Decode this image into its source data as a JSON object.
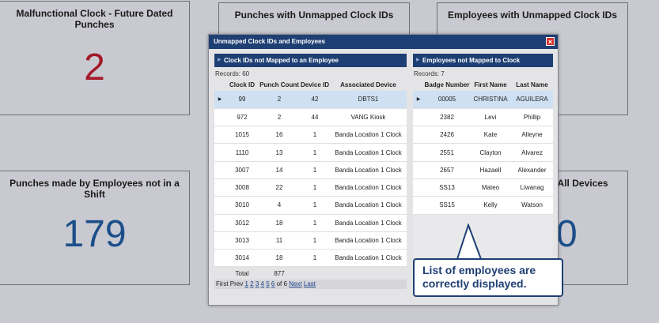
{
  "tiles": [
    {
      "title": "Malfunctional Clock - Future Dated Punches",
      "value": "2"
    },
    {
      "title": "Punches with Unmapped Clock IDs",
      "value": ""
    },
    {
      "title": "Employees with Unmapped Clock IDs",
      "value": ""
    },
    {
      "title": "Punches made by Employees not in a Shift",
      "value": "179"
    },
    {
      "title": "r All Devices",
      "value": "0"
    }
  ],
  "modal": {
    "title": "Unmapped Clock IDs and Employees",
    "close": "×",
    "left_panel": {
      "title": "Clock IDs not Mapped to an Employee",
      "records": "Records:  60",
      "columns": [
        "Clock ID",
        "Punch Count",
        "Device ID",
        "Associated Device"
      ],
      "rows": [
        [
          "99",
          "2",
          "42",
          "DBTS1"
        ],
        [
          "972",
          "2",
          "44",
          "VANG Kiosk"
        ],
        [
          "1015",
          "16",
          "1",
          "Banda Location 1 Clock"
        ],
        [
          "1110",
          "13",
          "1",
          "Banda Location 1 Clock"
        ],
        [
          "3007",
          "14",
          "1",
          "Banda Location 1 Clock"
        ],
        [
          "3008",
          "22",
          "1",
          "Banda Location 1 Clock"
        ],
        [
          "3010",
          "4",
          "1",
          "Banda Location 1 Clock"
        ],
        [
          "3012",
          "18",
          "1",
          "Banda Location 1 Clock"
        ],
        [
          "3013",
          "11",
          "1",
          "Banda Location 1 Clock"
        ],
        [
          "3014",
          "18",
          "1",
          "Banda Location 1 Clock"
        ]
      ],
      "total_label": "Total",
      "total_value": "877",
      "pager": {
        "first": "First",
        "prev": "Prev",
        "pages": [
          "1",
          "2",
          "3",
          "4",
          "5",
          "6"
        ],
        "of": "of 6",
        "next": "Next",
        "last": "Last"
      }
    },
    "right_panel": {
      "title": "Employees not Mapped to Clock",
      "records": "Records:  7",
      "columns": [
        "Badge Number",
        "First Name",
        "Last Name"
      ],
      "rows": [
        [
          "00005",
          "CHRISTINA",
          "AGUILERA"
        ],
        [
          "2382",
          "Levi",
          "Phillip"
        ],
        [
          "2426",
          "Kate",
          "Alleyne"
        ],
        [
          "2551",
          "Clayton",
          "Alvarez"
        ],
        [
          "2657",
          "Hazaell",
          "Alexander"
        ],
        [
          "SS13",
          "Mateo",
          "Liwanag"
        ],
        [
          "SS15",
          "Kelly",
          "Watson"
        ]
      ]
    }
  },
  "callout": {
    "line1": "List of employees are",
    "line2": "correctly displayed."
  }
}
